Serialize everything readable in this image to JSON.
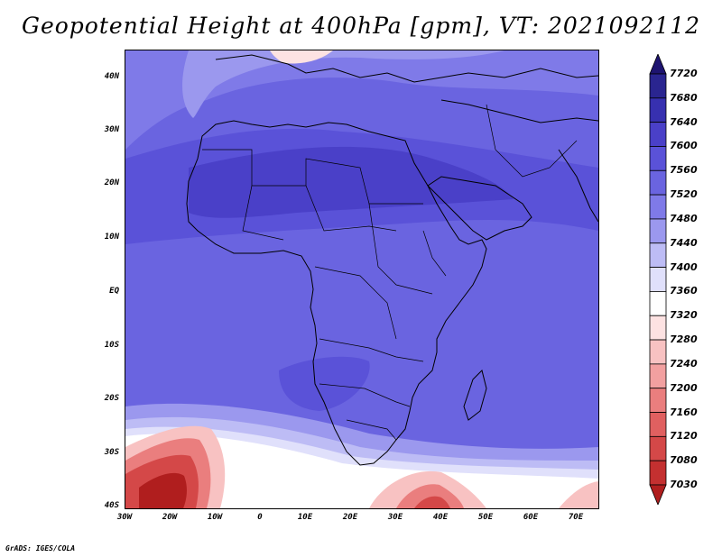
{
  "title": "Geopotential Height at 400hPa [gpm], VT: 2021092112",
  "footer": "GrADS: IGES/COLA",
  "lat_labels": [
    "40N",
    "30N",
    "20N",
    "10N",
    "EQ",
    "10S",
    "20S",
    "30S",
    "40S"
  ],
  "lon_labels": [
    "30W",
    "20W",
    "10W",
    "0",
    "10E",
    "20E",
    "30E",
    "40E",
    "50E",
    "60E",
    "70E"
  ],
  "colorbar": {
    "labels": [
      "7720",
      "7680",
      "7640",
      "7600",
      "7560",
      "7520",
      "7480",
      "7440",
      "7400",
      "7360",
      "7320",
      "7280",
      "7240",
      "7200",
      "7160",
      "7120",
      "7080",
      "7030"
    ],
    "colors": [
      "#1e1470",
      "#2a2590",
      "#3730b0",
      "#4a40c8",
      "#5a52d8",
      "#6a64e0",
      "#7f7ae8",
      "#9b98ee",
      "#bdbcf5",
      "#e0e0fb",
      "#ffffff",
      "#fde2e2",
      "#f8c2c2",
      "#f2a0a0",
      "#ea7e7e",
      "#e06060",
      "#d44848",
      "#c43030",
      "#b01e1e"
    ]
  },
  "map": {
    "lon_range": [
      -30,
      75
    ],
    "lat_range": [
      -40,
      45
    ],
    "variable": "Geopotential Height",
    "level": "400hPa",
    "units": "gpm",
    "valid_time": "2021092112"
  }
}
